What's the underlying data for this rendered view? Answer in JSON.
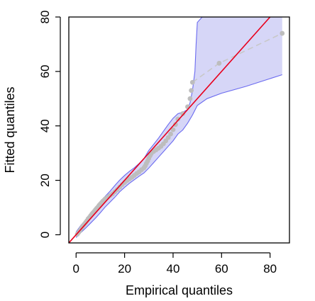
{
  "chart_data": {
    "type": "scatter",
    "title": "",
    "xlabel": "Empirical quantiles",
    "ylabel": "Fitted quantiles",
    "xlim": [
      -3,
      88
    ],
    "ylim": [
      -3,
      80
    ],
    "x_ticks": [
      "0",
      "20",
      "40",
      "60",
      "80"
    ],
    "y_ticks": [
      "0",
      "20",
      "40",
      "60",
      "80"
    ],
    "grid": false,
    "legend": "none",
    "colors": {
      "points": "#bdbdbd",
      "reference_line": "#e8001c",
      "band_fill": "#d6d6f7",
      "band_edge": "#6b6bf0",
      "dashed_line": "#c8c8c8"
    },
    "series": [
      {
        "kind": "points",
        "points": [
          [
            0.5,
            0.2
          ],
          [
            1,
            0.8
          ],
          [
            1.5,
            1.4
          ],
          [
            2,
            2.1
          ],
          [
            2.5,
            2.8
          ],
          [
            3,
            3.4
          ],
          [
            3.5,
            4.0
          ],
          [
            4,
            4.6
          ],
          [
            4.5,
            5.2
          ],
          [
            5,
            5.9
          ],
          [
            5.5,
            6.4
          ],
          [
            6,
            7.0
          ],
          [
            6.5,
            7.6
          ],
          [
            7,
            8.1
          ],
          [
            7.5,
            8.6
          ],
          [
            8,
            9.2
          ],
          [
            8.5,
            9.7
          ],
          [
            9,
            10.2
          ],
          [
            9.5,
            10.8
          ],
          [
            10,
            11.3
          ],
          [
            10.5,
            11.8
          ],
          [
            11,
            12.3
          ],
          [
            11.5,
            12.7
          ],
          [
            12,
            13.2
          ],
          [
            13,
            13.8
          ],
          [
            14,
            14.4
          ],
          [
            15,
            15.0
          ],
          [
            16,
            15.8
          ],
          [
            17,
            16.6
          ],
          [
            18,
            17.5
          ],
          [
            19,
            18.4
          ],
          [
            20,
            19.2
          ],
          [
            21,
            19.9
          ],
          [
            22,
            20.5
          ],
          [
            23,
            21.1
          ],
          [
            24,
            21.8
          ],
          [
            25,
            22.5
          ],
          [
            26,
            23.1
          ],
          [
            27,
            23.9
          ],
          [
            28,
            24.6
          ],
          [
            28.5,
            25.3
          ],
          [
            29,
            26.2
          ],
          [
            29.5,
            27.1
          ],
          [
            30,
            28.1
          ],
          [
            30.5,
            29.0
          ],
          [
            31,
            29.8
          ],
          [
            32,
            30.6
          ],
          [
            33,
            31.2
          ],
          [
            34,
            31.8
          ],
          [
            35,
            32.5
          ],
          [
            36,
            33.4
          ],
          [
            37,
            34.5
          ],
          [
            38,
            35.7
          ],
          [
            39,
            37.0
          ],
          [
            40,
            38.6
          ],
          [
            41,
            40.5
          ],
          [
            42,
            42.5
          ],
          [
            44,
            44.5
          ],
          [
            46,
            47.0
          ],
          [
            47,
            50.0
          ],
          [
            47.5,
            53.0
          ],
          [
            48,
            56.0
          ],
          [
            59,
            63.0
          ],
          [
            85,
            74.0
          ]
        ]
      },
      {
        "kind": "reference_line",
        "points": [
          [
            -3,
            -3
          ],
          [
            80,
            80
          ]
        ]
      },
      {
        "kind": "dashed_line",
        "points": [
          [
            48,
            56
          ],
          [
            59,
            63
          ],
          [
            85,
            74
          ]
        ]
      },
      {
        "kind": "band",
        "lower": [
          [
            0,
            -1
          ],
          [
            2,
            0.8
          ],
          [
            4,
            2.5
          ],
          [
            6,
            4.3
          ],
          [
            8,
            6.1
          ],
          [
            10,
            8.1
          ],
          [
            12,
            10.2
          ],
          [
            14,
            12.0
          ],
          [
            16,
            13.8
          ],
          [
            18,
            15.8
          ],
          [
            20,
            17.4
          ],
          [
            22,
            18.9
          ],
          [
            24,
            20.2
          ],
          [
            26,
            21.5
          ],
          [
            28,
            22.7
          ],
          [
            30,
            24.5
          ],
          [
            32,
            26.5
          ],
          [
            34,
            28.5
          ],
          [
            36,
            30.5
          ],
          [
            38,
            32.5
          ],
          [
            40,
            34.5
          ],
          [
            42,
            37.0
          ],
          [
            44,
            38.5
          ],
          [
            46,
            41.0
          ],
          [
            48,
            44.0
          ],
          [
            50,
            47.5
          ],
          [
            54,
            50.0
          ],
          [
            60,
            52.0
          ],
          [
            70,
            54.5
          ],
          [
            85,
            58.8
          ]
        ],
        "upper": [
          [
            0,
            1.0
          ],
          [
            2,
            3.5
          ],
          [
            4,
            5.5
          ],
          [
            6,
            7.6
          ],
          [
            8,
            9.6
          ],
          [
            10,
            11.8
          ],
          [
            12,
            14.1
          ],
          [
            14,
            16.0
          ],
          [
            16,
            18.1
          ],
          [
            18,
            20.1
          ],
          [
            20,
            21.8
          ],
          [
            22,
            23.3
          ],
          [
            24,
            24.6
          ],
          [
            26,
            26.2
          ],
          [
            28,
            28.0
          ],
          [
            30,
            31.0
          ],
          [
            32,
            33.2
          ],
          [
            34,
            35.5
          ],
          [
            36,
            38.0
          ],
          [
            38,
            40.5
          ],
          [
            40,
            42.8
          ],
          [
            42,
            44.5
          ],
          [
            44,
            45.0
          ],
          [
            46,
            46.0
          ],
          [
            47,
            48.5
          ],
          [
            48,
            53.0
          ],
          [
            49,
            60.0
          ],
          [
            49.5,
            70.0
          ],
          [
            50,
            78.0
          ],
          [
            52,
            80
          ],
          [
            85,
            80
          ]
        ]
      }
    ]
  }
}
